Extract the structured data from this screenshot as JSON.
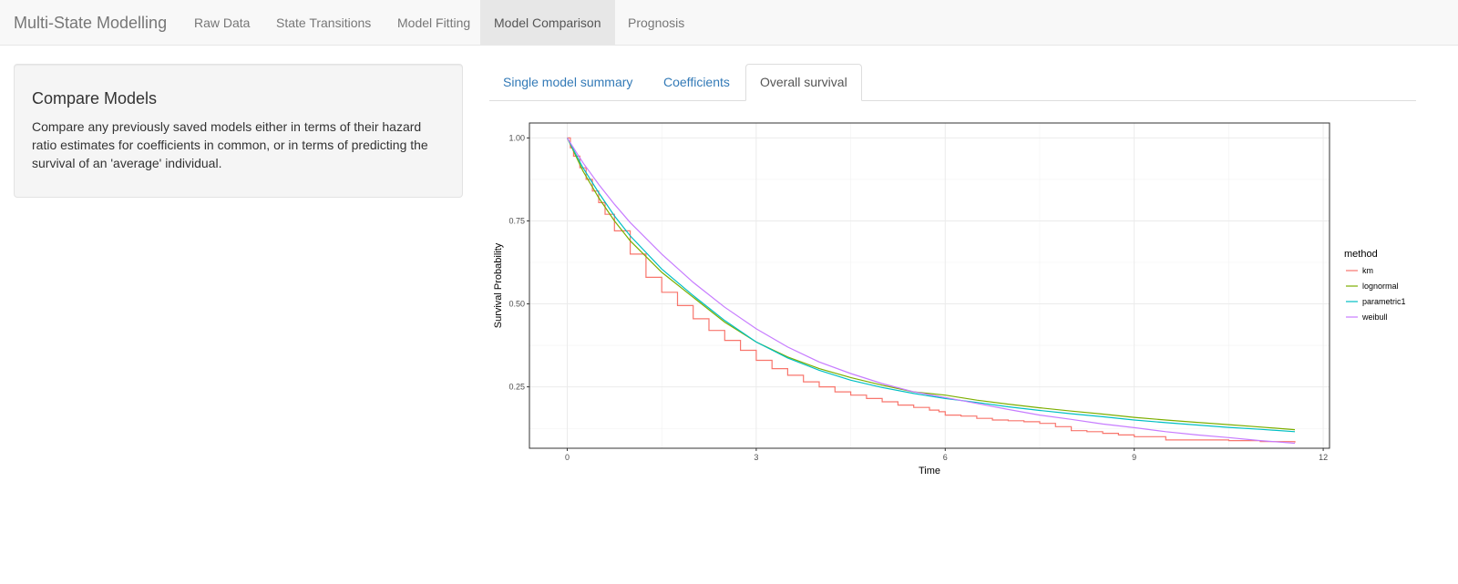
{
  "navbar": {
    "brand": "Multi-State Modelling",
    "items": [
      {
        "label": "Raw Data",
        "active": false
      },
      {
        "label": "State Transitions",
        "active": false
      },
      {
        "label": "Model Fitting",
        "active": false
      },
      {
        "label": "Model Comparison",
        "active": true
      },
      {
        "label": "Prognosis",
        "active": false
      }
    ]
  },
  "sidebar": {
    "title": "Compare Models",
    "description": "Compare any previously saved models either in terms of their hazard ratio estimates for coefficients in common, or in terms of predicting the survival of an 'average' individual."
  },
  "tabs": [
    {
      "label": "Single model summary",
      "active": false
    },
    {
      "label": "Coefficients",
      "active": false
    },
    {
      "label": "Overall survival",
      "active": true
    }
  ],
  "chart_data": {
    "type": "line",
    "title": "",
    "xlabel": "Time",
    "ylabel": "Survival Probability",
    "xlim": [
      -0.6,
      12.1
    ],
    "ylim": [
      0.065,
      1.045
    ],
    "x_ticks": [
      0,
      3,
      6,
      9,
      12
    ],
    "y_ticks": [
      0.25,
      0.5,
      0.75,
      1.0
    ],
    "y_tick_labels": [
      "0.25",
      "0.50",
      "0.75",
      "1.00"
    ],
    "grid": true,
    "legend": {
      "title": "method",
      "placement": "right"
    },
    "series": [
      {
        "name": "km",
        "color": "#F8766D",
        "step": true,
        "x": [
          0,
          0.05,
          0.1,
          0.2,
          0.3,
          0.4,
          0.5,
          0.6,
          0.75,
          1.0,
          1.25,
          1.5,
          1.75,
          2.0,
          2.25,
          2.5,
          2.75,
          3.0,
          3.25,
          3.5,
          3.75,
          4.0,
          4.25,
          4.5,
          4.75,
          5.0,
          5.25,
          5.5,
          5.75,
          5.9,
          6.0,
          6.25,
          6.5,
          6.75,
          7.0,
          7.25,
          7.5,
          7.75,
          8.0,
          8.25,
          8.5,
          8.75,
          9.0,
          9.5,
          10.0,
          10.5,
          11.0,
          11.55
        ],
        "y": [
          1.0,
          0.97,
          0.945,
          0.91,
          0.875,
          0.84,
          0.805,
          0.77,
          0.72,
          0.65,
          0.58,
          0.535,
          0.495,
          0.455,
          0.42,
          0.39,
          0.36,
          0.33,
          0.305,
          0.285,
          0.265,
          0.25,
          0.235,
          0.225,
          0.215,
          0.205,
          0.195,
          0.188,
          0.18,
          0.175,
          0.165,
          0.162,
          0.155,
          0.15,
          0.148,
          0.145,
          0.14,
          0.13,
          0.118,
          0.115,
          0.11,
          0.105,
          0.1,
          0.09,
          0.09,
          0.088,
          0.085,
          0.082
        ]
      },
      {
        "name": "lognormal",
        "color": "#7CAE00",
        "x": [
          0,
          0.25,
          0.5,
          0.75,
          1.0,
          1.5,
          2.0,
          2.5,
          3.0,
          3.5,
          4.0,
          4.5,
          5.0,
          5.5,
          6.0,
          6.5,
          7.0,
          7.5,
          8.0,
          8.5,
          9.0,
          9.5,
          10.0,
          10.5,
          11.0,
          11.55
        ],
        "y": [
          1.0,
          0.9,
          0.82,
          0.75,
          0.69,
          0.595,
          0.52,
          0.445,
          0.385,
          0.34,
          0.305,
          0.278,
          0.255,
          0.235,
          0.225,
          0.21,
          0.198,
          0.187,
          0.177,
          0.168,
          0.158,
          0.15,
          0.143,
          0.136,
          0.129,
          0.121
        ]
      },
      {
        "name": "parametric1",
        "color": "#00BFC4",
        "x": [
          0,
          0.25,
          0.5,
          0.75,
          1.0,
          1.5,
          2.0,
          2.5,
          3.0,
          3.5,
          4.0,
          4.5,
          5.0,
          5.5,
          6.0,
          6.5,
          7.0,
          7.5,
          8.0,
          8.5,
          9.0,
          9.5,
          10.0,
          10.5,
          11.0,
          11.55
        ],
        "y": [
          1.0,
          0.91,
          0.835,
          0.765,
          0.705,
          0.605,
          0.525,
          0.45,
          0.385,
          0.337,
          0.3,
          0.27,
          0.248,
          0.23,
          0.215,
          0.203,
          0.19,
          0.179,
          0.169,
          0.16,
          0.15,
          0.142,
          0.135,
          0.128,
          0.122,
          0.115
        ]
      },
      {
        "name": "weibull",
        "color": "#C77CFF",
        "x": [
          0,
          0.25,
          0.5,
          0.75,
          1.0,
          1.5,
          2.0,
          2.5,
          3.0,
          3.5,
          4.0,
          4.5,
          5.0,
          5.5,
          6.0,
          6.5,
          7.0,
          7.5,
          8.0,
          8.5,
          9.0,
          9.5,
          10.0,
          10.5,
          11.0,
          11.55
        ],
        "y": [
          1.0,
          0.925,
          0.86,
          0.8,
          0.745,
          0.65,
          0.565,
          0.49,
          0.425,
          0.37,
          0.325,
          0.29,
          0.26,
          0.235,
          0.218,
          0.2,
          0.182,
          0.165,
          0.152,
          0.138,
          0.127,
          0.115,
          0.105,
          0.097,
          0.088,
          0.08
        ]
      }
    ]
  }
}
